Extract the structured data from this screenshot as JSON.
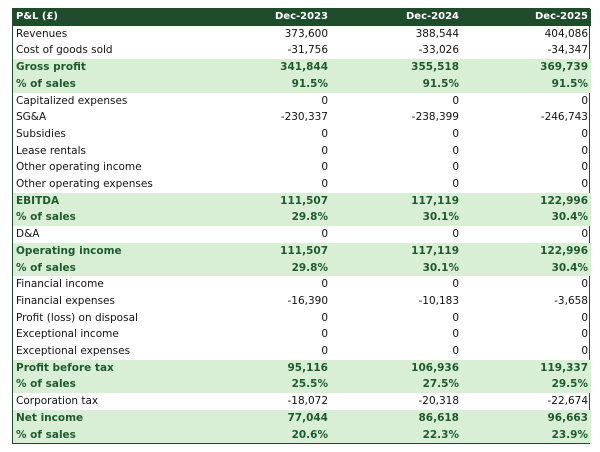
{
  "table": {
    "header": [
      "P&L (£)",
      "Dec-2023",
      "Dec-2024",
      "Dec-2025"
    ],
    "header_color": "#1f4d2c",
    "highlight_color": "#d8efd6",
    "highlight_text_color": "#1f5a2e",
    "rows": [
      {
        "label": "Revenues",
        "values": [
          "373,600",
          "388,544",
          "404,086"
        ]
      },
      {
        "label": "Cost of goods sold",
        "values": [
          "-31,756",
          "-33,026",
          "-34,347"
        ]
      },
      {
        "label": "Gross profit",
        "values": [
          "341,844",
          "355,518",
          "369,739"
        ],
        "highlighted": true
      },
      {
        "label": "% of sales",
        "values": [
          "91.5%",
          "91.5%",
          "91.5%"
        ],
        "highlighted": true
      },
      {
        "label": "Capitalized expenses",
        "values": [
          "0",
          "0",
          "0"
        ]
      },
      {
        "label": "SG&A",
        "values": [
          "-230,337",
          "-238,399",
          "-246,743"
        ]
      },
      {
        "label": "Subsidies",
        "values": [
          "0",
          "0",
          "0"
        ]
      },
      {
        "label": "Lease rentals",
        "values": [
          "0",
          "0",
          "0"
        ]
      },
      {
        "label": "Other operating income",
        "values": [
          "0",
          "0",
          "0"
        ]
      },
      {
        "label": "Other operating expenses",
        "values": [
          "0",
          "0",
          "0"
        ]
      },
      {
        "label": "EBITDA",
        "values": [
          "111,507",
          "117,119",
          "122,996"
        ],
        "highlighted": true
      },
      {
        "label": "% of sales",
        "values": [
          "29.8%",
          "30.1%",
          "30.4%"
        ],
        "highlighted": true
      },
      {
        "label": "D&A",
        "values": [
          "0",
          "0",
          "0"
        ]
      },
      {
        "label": "Operating income",
        "values": [
          "111,507",
          "117,119",
          "122,996"
        ],
        "highlighted": true
      },
      {
        "label": "% of sales",
        "values": [
          "29.8%",
          "30.1%",
          "30.4%"
        ],
        "highlighted": true
      },
      {
        "label": "Financial income",
        "values": [
          "0",
          "0",
          "0"
        ]
      },
      {
        "label": "Financial expenses",
        "values": [
          "-16,390",
          "-10,183",
          "-3,658"
        ]
      },
      {
        "label": "Profit (loss) on disposal",
        "values": [
          "0",
          "0",
          "0"
        ]
      },
      {
        "label": "Exceptional income",
        "values": [
          "0",
          "0",
          "0"
        ]
      },
      {
        "label": "Exceptional expenses",
        "values": [
          "0",
          "0",
          "0"
        ]
      },
      {
        "label": "Profit before tax",
        "values": [
          "95,116",
          "106,936",
          "119,337"
        ],
        "highlighted": true
      },
      {
        "label": "% of sales",
        "values": [
          "25.5%",
          "27.5%",
          "29.5%"
        ],
        "highlighted": true
      },
      {
        "label": "Corporation tax",
        "values": [
          "-18,072",
          "-20,318",
          "-22,674"
        ]
      },
      {
        "label": "Net income",
        "values": [
          "77,044",
          "86,618",
          "96,663"
        ],
        "highlighted": true
      },
      {
        "label": "% of sales",
        "values": [
          "20.6%",
          "22.3%",
          "23.9%"
        ],
        "highlighted": true
      }
    ]
  }
}
